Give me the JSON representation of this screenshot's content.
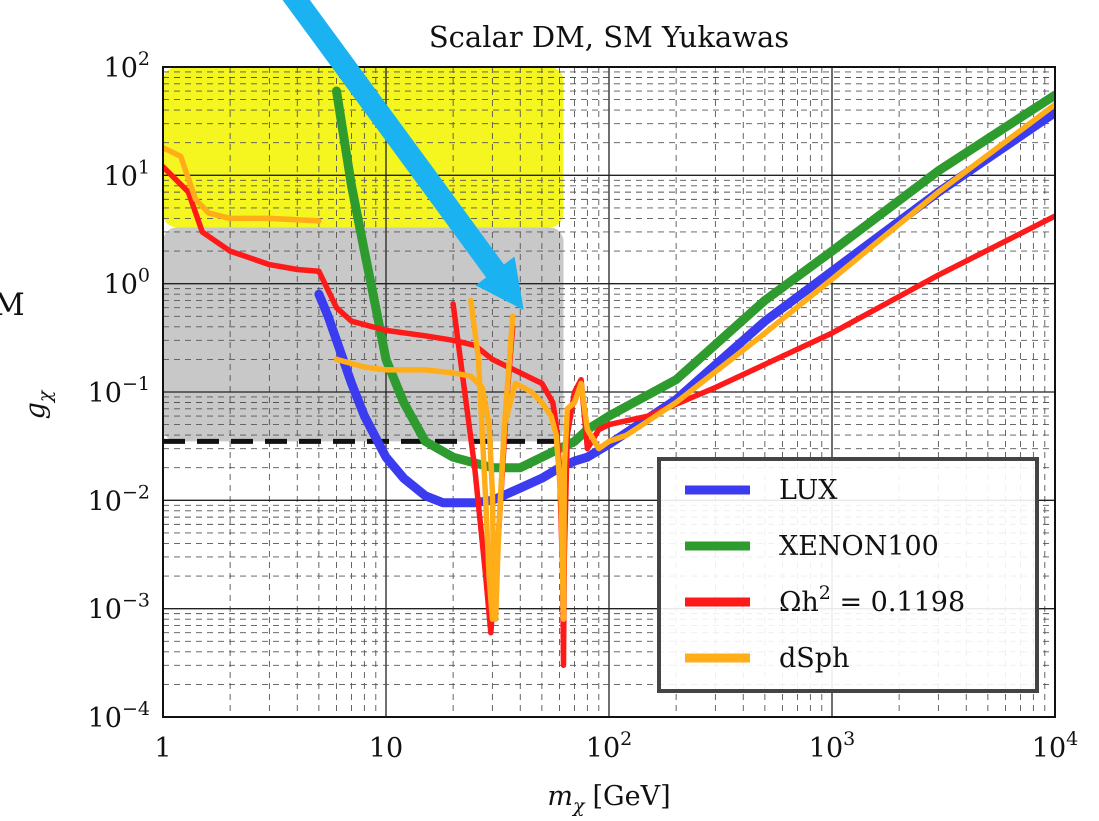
{
  "chart_data": {
    "type": "line",
    "title": "Scalar DM, SM Yukawas",
    "xlabel": "mχ [GeV]",
    "xlabel_parts": {
      "symbol": "m",
      "sub": "χ",
      "unit": "[GeV]"
    },
    "ylabel": "gχ",
    "ylabel_parts": {
      "symbol": "g",
      "sub": "χ"
    },
    "partial_edge_label": "M",
    "x_scale": "log",
    "y_scale": "log",
    "xlim": [
      1,
      10000
    ],
    "ylim": [
      0.0001,
      100
    ],
    "x_ticks": [
      {
        "value": 1,
        "base": "1",
        "exp": ""
      },
      {
        "value": 10,
        "base": "10",
        "exp": ""
      },
      {
        "value": 100,
        "base": "10",
        "exp": "2"
      },
      {
        "value": 1000,
        "base": "10",
        "exp": "3"
      },
      {
        "value": 10000,
        "base": "10",
        "exp": "4"
      }
    ],
    "y_ticks": [
      {
        "value": 100,
        "base": "10",
        "exp": "2"
      },
      {
        "value": 10,
        "base": "10",
        "exp": "1"
      },
      {
        "value": 1,
        "base": "10",
        "exp": "0"
      },
      {
        "value": 0.1,
        "base": "10",
        "exp": "−1"
      },
      {
        "value": 0.01,
        "base": "10",
        "exp": "−2"
      },
      {
        "value": 0.001,
        "base": "10",
        "exp": "−3"
      },
      {
        "value": 0.0001,
        "base": "10",
        "exp": "−4"
      }
    ],
    "grid": true,
    "shaded_regions": [
      {
        "color": "#c8c8c8",
        "x": [
          1,
          62.5
        ],
        "y": [
          0.035,
          3.3
        ]
      },
      {
        "color": "#f5f520",
        "x": [
          1,
          62.5
        ],
        "y": [
          3.3,
          100
        ]
      }
    ],
    "dashed_line": {
      "color": "#111111",
      "x": [
        1,
        58
      ],
      "y": 0.035
    },
    "legend": {
      "position": "bottom-right"
    },
    "series": [
      {
        "name": "LUX",
        "label": "LUX",
        "color": "#3b3bf0",
        "points": [
          [
            5,
            0.8
          ],
          [
            5.5,
            0.5
          ],
          [
            6,
            0.3
          ],
          [
            7,
            0.12
          ],
          [
            8,
            0.06
          ],
          [
            10,
            0.025
          ],
          [
            12,
            0.016
          ],
          [
            15,
            0.011
          ],
          [
            18,
            0.0095
          ],
          [
            25,
            0.0095
          ],
          [
            30,
            0.01
          ],
          [
            40,
            0.013
          ],
          [
            50,
            0.016
          ],
          [
            60,
            0.02
          ],
          [
            70,
            0.023
          ],
          [
            80,
            0.025
          ],
          [
            100,
            0.033
          ],
          [
            200,
            0.085
          ],
          [
            500,
            0.45
          ],
          [
            1000,
            1.3
          ],
          [
            3000,
            7
          ],
          [
            10000,
            38
          ]
        ]
      },
      {
        "name": "XENON100",
        "label": "XENON100",
        "color": "#2e9b2e",
        "points": [
          [
            6,
            60
          ],
          [
            7,
            8
          ],
          [
            8,
            2
          ],
          [
            9,
            0.6
          ],
          [
            10,
            0.2
          ],
          [
            12,
            0.08
          ],
          [
            15,
            0.035
          ],
          [
            20,
            0.025
          ],
          [
            30,
            0.02
          ],
          [
            40,
            0.02
          ],
          [
            50,
            0.025
          ],
          [
            60,
            0.03
          ],
          [
            70,
            0.035
          ],
          [
            80,
            0.045
          ],
          [
            100,
            0.06
          ],
          [
            200,
            0.13
          ],
          [
            500,
            0.7
          ],
          [
            1000,
            2
          ],
          [
            3000,
            11
          ],
          [
            10000,
            55
          ]
        ]
      },
      {
        "name": "Ωh² = 0.1198",
        "label": "Ωh",
        "sup": "2",
        "tail": " = 0.1198",
        "color": "#ff1a1a",
        "points": [
          [
            1,
            12
          ],
          [
            1.3,
            7
          ],
          [
            1.5,
            3
          ],
          [
            2,
            2
          ],
          [
            3,
            1.5
          ],
          [
            4,
            1.35
          ],
          [
            5,
            1.3
          ],
          [
            6,
            0.6
          ],
          [
            7,
            0.45
          ],
          [
            10,
            0.37
          ],
          [
            15,
            0.33
          ],
          [
            20,
            0.3
          ],
          [
            25,
            0.27
          ],
          [
            30,
            0.2
          ],
          [
            40,
            0.15
          ],
          [
            50,
            0.12
          ],
          [
            56,
            0.08
          ],
          [
            58,
            0.05
          ],
          [
            60,
            0.02
          ],
          [
            62,
            0.002
          ],
          [
            62.5,
            0.0003
          ],
          [
            63,
            0.003
          ],
          [
            65,
            0.04
          ],
          [
            70,
            0.1
          ],
          [
            75,
            0.13
          ],
          [
            80,
            0.03
          ],
          [
            90,
            0.045
          ],
          [
            100,
            0.05
          ],
          [
            150,
            0.06
          ],
          [
            300,
            0.11
          ],
          [
            1000,
            0.35
          ],
          [
            3000,
            1.2
          ],
          [
            10000,
            4.2
          ]
        ]
      },
      {
        "name": "ΩDM dip",
        "label": "",
        "color": "#ff1a1a",
        "points": [
          [
            20,
            0.65
          ],
          [
            25,
            0.02
          ],
          [
            28,
            0.002
          ],
          [
            29.5,
            0.0006
          ],
          [
            32,
            0.005
          ],
          [
            35,
            0.1
          ],
          [
            37,
            0.4
          ]
        ]
      },
      {
        "name": "dSph",
        "label": "dSph",
        "color": "#ffae1a",
        "points": [
          [
            1,
            18
          ],
          [
            1.2,
            15
          ],
          [
            1.4,
            6
          ],
          [
            1.6,
            4.5
          ],
          [
            2,
            4
          ],
          [
            3,
            4
          ],
          [
            5,
            3.8
          ]
        ]
      },
      {
        "name": "dSph2",
        "label": "",
        "color": "#ffae1a",
        "points": [
          [
            6,
            0.2
          ],
          [
            8,
            0.17
          ],
          [
            10,
            0.16
          ],
          [
            15,
            0.16
          ],
          [
            20,
            0.15
          ],
          [
            24,
            0.14
          ],
          [
            27,
            0.11
          ],
          [
            29,
            0.05
          ],
          [
            30,
            0.012
          ],
          [
            30.5,
            0.001
          ],
          [
            31,
            0.0008
          ],
          [
            32,
            0.005
          ],
          [
            34,
            0.05
          ],
          [
            38,
            0.12
          ],
          [
            45,
            0.1
          ],
          [
            50,
            0.08
          ],
          [
            55,
            0.06
          ],
          [
            58,
            0.04
          ],
          [
            61,
            0.01
          ],
          [
            62.5,
            0.0008
          ],
          [
            63,
            0.02
          ],
          [
            65,
            0.07
          ],
          [
            70,
            0.08
          ],
          [
            75,
            0.12
          ],
          [
            80,
            0.045
          ],
          [
            90,
            0.03
          ],
          [
            100,
            0.035
          ],
          [
            120,
            0.04
          ],
          [
            200,
            0.08
          ],
          [
            500,
            0.35
          ],
          [
            1000,
            1.1
          ],
          [
            3000,
            7
          ],
          [
            10000,
            45
          ]
        ]
      },
      {
        "name": "dSph3",
        "label": "",
        "color": "#ffae1a",
        "points": [
          [
            24,
            0.7
          ],
          [
            26,
            0.2
          ],
          [
            28,
            0.01
          ],
          [
            29,
            0.002
          ],
          [
            30,
            0.0008
          ],
          [
            32,
            0.005
          ],
          [
            34,
            0.05
          ],
          [
            37,
            0.5
          ]
        ]
      }
    ],
    "annotations": [
      {
        "type": "arrow",
        "color": "#1ab2f0",
        "from": [
          5,
          200
        ],
        "to": [
          35,
          0.7
        ]
      }
    ]
  }
}
